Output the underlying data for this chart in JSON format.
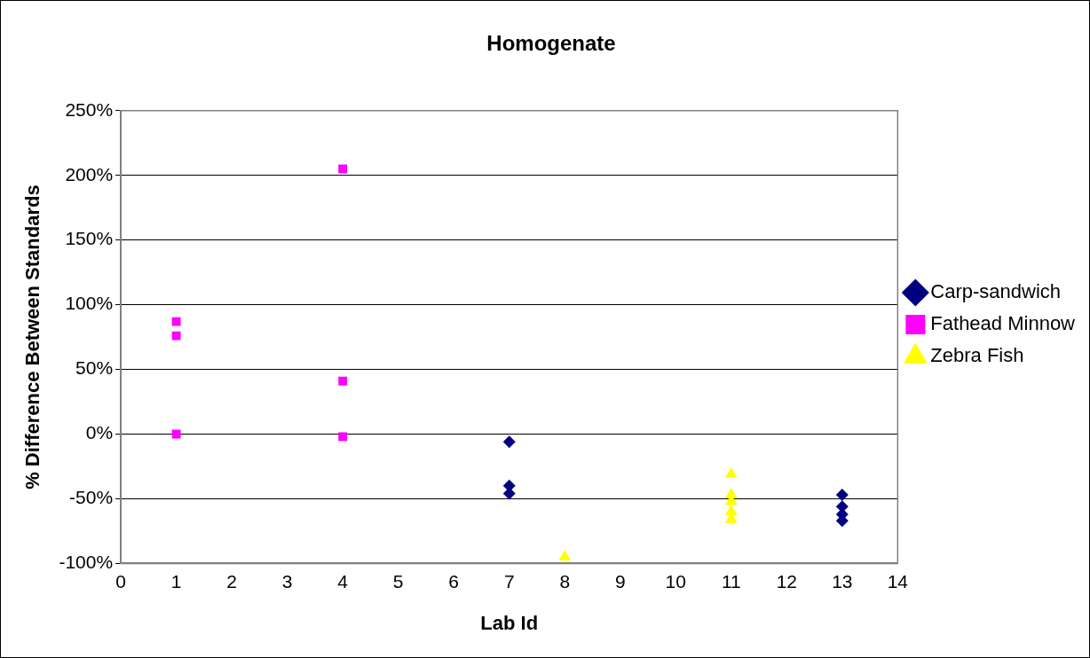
{
  "chart_data": {
    "type": "scatter",
    "title": "Homogenate",
    "xlabel": "Lab Id",
    "ylabel": "% Difference Between Standards",
    "xlim": [
      0,
      14
    ],
    "xticks": [
      0,
      1,
      2,
      3,
      4,
      5,
      6,
      7,
      8,
      9,
      10,
      11,
      12,
      13,
      14
    ],
    "ylim": [
      -100,
      250
    ],
    "yticks": [
      {
        "value": -100,
        "label": "-100%"
      },
      {
        "value": -50,
        "label": "-50%"
      },
      {
        "value": 0,
        "label": "0%"
      },
      {
        "value": 50,
        "label": "50%"
      },
      {
        "value": 100,
        "label": "100%"
      },
      {
        "value": 150,
        "label": "150%"
      },
      {
        "value": 200,
        "label": "200%"
      },
      {
        "value": 250,
        "label": "250%"
      }
    ],
    "grid": "y",
    "legend": "right",
    "series": [
      {
        "name": "Carp-sandwich",
        "color": "#000080",
        "marker": "diamond",
        "x": [
          7,
          7,
          7,
          13,
          13,
          13,
          13
        ],
        "values": [
          -6,
          -40,
          -46,
          -47,
          -56,
          -62,
          -67
        ]
      },
      {
        "name": "Fathead Minnow",
        "color": "#ff00ff",
        "marker": "square",
        "x": [
          1,
          1,
          1,
          4,
          4,
          4
        ],
        "values": [
          87,
          76,
          0,
          205,
          41,
          -2
        ]
      },
      {
        "name": "Zebra Fish",
        "color": "#ffff00",
        "marker": "triangle",
        "x": [
          8,
          11,
          11,
          11,
          11,
          11
        ],
        "values": [
          -95,
          -31,
          -47,
          -52,
          -60,
          -66
        ]
      }
    ]
  }
}
